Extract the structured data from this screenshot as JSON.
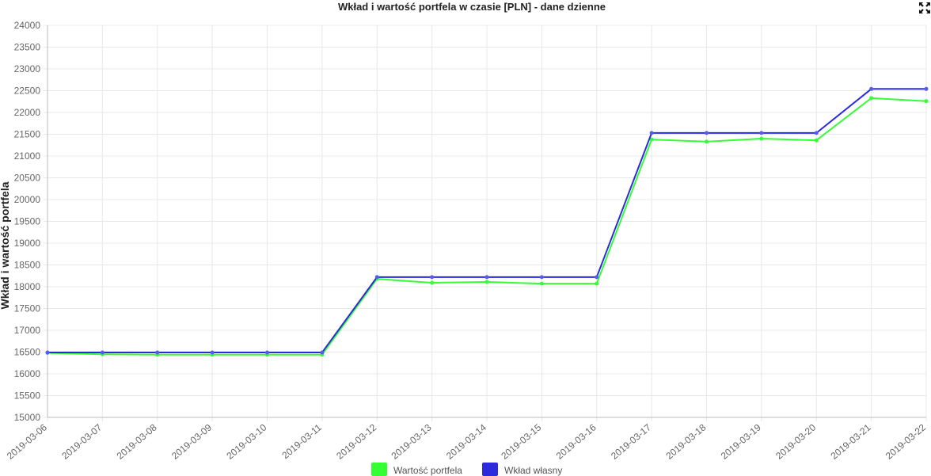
{
  "chart_data": {
    "type": "line",
    "title": "Wkład i wartość portfela w czasie [PLN] - dane dzienne",
    "ylabel": "Wkład i wartość portfela",
    "xlabel": "",
    "ylim": [
      15000,
      24000
    ],
    "yticks": [
      "24000",
      "23500",
      "23000",
      "22500",
      "22000",
      "21500",
      "21000",
      "20500",
      "20000",
      "19500",
      "19000",
      "18500",
      "18000",
      "17500",
      "17000",
      "16500",
      "16000",
      "15500",
      "15000"
    ],
    "categories": [
      "2019-03-06",
      "2019-03-07",
      "2019-03-08",
      "2019-03-09",
      "2019-03-10",
      "2019-03-11",
      "2019-03-12",
      "2019-03-13",
      "2019-03-14",
      "2019-03-15",
      "2019-03-16",
      "2019-03-17",
      "2019-03-18",
      "2019-03-19",
      "2019-03-20",
      "2019-03-21",
      "2019-03-22"
    ],
    "series": [
      {
        "name": "Wartość portfela",
        "color": "#33ff33",
        "values": [
          16480,
          16450,
          16440,
          16440,
          16440,
          16440,
          18180,
          18090,
          18110,
          18070,
          18070,
          21380,
          21330,
          21400,
          21360,
          22330,
          22260
        ]
      },
      {
        "name": "Wkład własny",
        "color": "#2b2bdd",
        "values": [
          16490,
          16490,
          16490,
          16490,
          16490,
          16490,
          18220,
          18220,
          18220,
          18220,
          18220,
          21530,
          21530,
          21530,
          21530,
          22540,
          22540
        ]
      }
    ],
    "grid": true,
    "legend": "bottom"
  },
  "expand_icon": "expand-icon"
}
